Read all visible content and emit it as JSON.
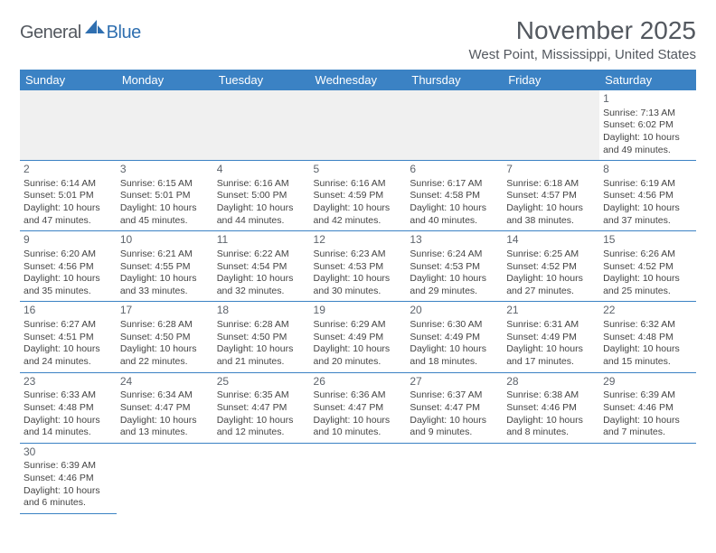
{
  "logo": {
    "text_dark": "General",
    "text_blue": "Blue"
  },
  "title": "November 2025",
  "location": "West Point, Mississippi, United States",
  "colors": {
    "header_bg": "#3b82c4",
    "header_text": "#ffffff",
    "title_text": "#53585f",
    "cell_border": "#3b82c4",
    "blank_bg": "#f0f0f0"
  },
  "weekdays": [
    "Sunday",
    "Monday",
    "Tuesday",
    "Wednesday",
    "Thursday",
    "Friday",
    "Saturday"
  ],
  "weeks": [
    [
      null,
      null,
      null,
      null,
      null,
      null,
      {
        "d": "1",
        "sr": "7:13 AM",
        "ss": "6:02 PM",
        "dl": "10 hours and 49 minutes."
      }
    ],
    [
      {
        "d": "2",
        "sr": "6:14 AM",
        "ss": "5:01 PM",
        "dl": "10 hours and 47 minutes."
      },
      {
        "d": "3",
        "sr": "6:15 AM",
        "ss": "5:01 PM",
        "dl": "10 hours and 45 minutes."
      },
      {
        "d": "4",
        "sr": "6:16 AM",
        "ss": "5:00 PM",
        "dl": "10 hours and 44 minutes."
      },
      {
        "d": "5",
        "sr": "6:16 AM",
        "ss": "4:59 PM",
        "dl": "10 hours and 42 minutes."
      },
      {
        "d": "6",
        "sr": "6:17 AM",
        "ss": "4:58 PM",
        "dl": "10 hours and 40 minutes."
      },
      {
        "d": "7",
        "sr": "6:18 AM",
        "ss": "4:57 PM",
        "dl": "10 hours and 38 minutes."
      },
      {
        "d": "8",
        "sr": "6:19 AM",
        "ss": "4:56 PM",
        "dl": "10 hours and 37 minutes."
      }
    ],
    [
      {
        "d": "9",
        "sr": "6:20 AM",
        "ss": "4:56 PM",
        "dl": "10 hours and 35 minutes."
      },
      {
        "d": "10",
        "sr": "6:21 AM",
        "ss": "4:55 PM",
        "dl": "10 hours and 33 minutes."
      },
      {
        "d": "11",
        "sr": "6:22 AM",
        "ss": "4:54 PM",
        "dl": "10 hours and 32 minutes."
      },
      {
        "d": "12",
        "sr": "6:23 AM",
        "ss": "4:53 PM",
        "dl": "10 hours and 30 minutes."
      },
      {
        "d": "13",
        "sr": "6:24 AM",
        "ss": "4:53 PM",
        "dl": "10 hours and 29 minutes."
      },
      {
        "d": "14",
        "sr": "6:25 AM",
        "ss": "4:52 PM",
        "dl": "10 hours and 27 minutes."
      },
      {
        "d": "15",
        "sr": "6:26 AM",
        "ss": "4:52 PM",
        "dl": "10 hours and 25 minutes."
      }
    ],
    [
      {
        "d": "16",
        "sr": "6:27 AM",
        "ss": "4:51 PM",
        "dl": "10 hours and 24 minutes."
      },
      {
        "d": "17",
        "sr": "6:28 AM",
        "ss": "4:50 PM",
        "dl": "10 hours and 22 minutes."
      },
      {
        "d": "18",
        "sr": "6:28 AM",
        "ss": "4:50 PM",
        "dl": "10 hours and 21 minutes."
      },
      {
        "d": "19",
        "sr": "6:29 AM",
        "ss": "4:49 PM",
        "dl": "10 hours and 20 minutes."
      },
      {
        "d": "20",
        "sr": "6:30 AM",
        "ss": "4:49 PM",
        "dl": "10 hours and 18 minutes."
      },
      {
        "d": "21",
        "sr": "6:31 AM",
        "ss": "4:49 PM",
        "dl": "10 hours and 17 minutes."
      },
      {
        "d": "22",
        "sr": "6:32 AM",
        "ss": "4:48 PM",
        "dl": "10 hours and 15 minutes."
      }
    ],
    [
      {
        "d": "23",
        "sr": "6:33 AM",
        "ss": "4:48 PM",
        "dl": "10 hours and 14 minutes."
      },
      {
        "d": "24",
        "sr": "6:34 AM",
        "ss": "4:47 PM",
        "dl": "10 hours and 13 minutes."
      },
      {
        "d": "25",
        "sr": "6:35 AM",
        "ss": "4:47 PM",
        "dl": "10 hours and 12 minutes."
      },
      {
        "d": "26",
        "sr": "6:36 AM",
        "ss": "4:47 PM",
        "dl": "10 hours and 10 minutes."
      },
      {
        "d": "27",
        "sr": "6:37 AM",
        "ss": "4:47 PM",
        "dl": "10 hours and 9 minutes."
      },
      {
        "d": "28",
        "sr": "6:38 AM",
        "ss": "4:46 PM",
        "dl": "10 hours and 8 minutes."
      },
      {
        "d": "29",
        "sr": "6:39 AM",
        "ss": "4:46 PM",
        "dl": "10 hours and 7 minutes."
      }
    ],
    [
      {
        "d": "30",
        "sr": "6:39 AM",
        "ss": "4:46 PM",
        "dl": "10 hours and 6 minutes."
      },
      null,
      null,
      null,
      null,
      null,
      null
    ]
  ],
  "labels": {
    "sunrise": "Sunrise:",
    "sunset": "Sunset:",
    "daylight": "Daylight:"
  }
}
